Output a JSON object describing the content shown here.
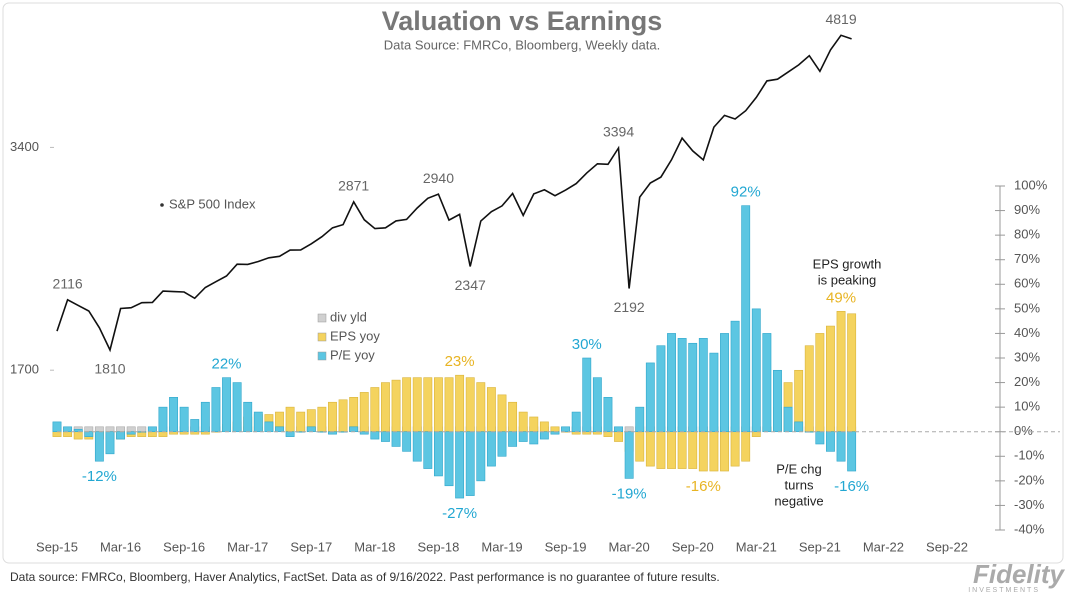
{
  "chart_data": {
    "type": "combo",
    "title": "Valuation vs Earnings",
    "subtitle": "Data Source: FMRCo, Bloomberg,  Weekly data.",
    "categories": [
      "Sep-15",
      null,
      null,
      null,
      null,
      null,
      "Mar-16",
      null,
      null,
      null,
      null,
      null,
      "Sep-16",
      null,
      null,
      null,
      null,
      null,
      "Mar-17",
      null,
      null,
      null,
      null,
      null,
      "Sep-17",
      null,
      null,
      null,
      null,
      null,
      "Mar-18",
      null,
      null,
      null,
      null,
      null,
      "Sep-18",
      null,
      null,
      null,
      null,
      null,
      "Mar-19",
      null,
      null,
      null,
      null,
      null,
      "Sep-19",
      null,
      null,
      null,
      null,
      null,
      "Mar-20",
      null,
      null,
      null,
      null,
      null,
      "Sep-20",
      null,
      null,
      null,
      null,
      null,
      "Mar-21",
      null,
      null,
      null,
      null,
      null,
      "Sep-21",
      null,
      null,
      null,
      null,
      null,
      "Mar-22",
      null,
      null,
      null,
      null,
      null,
      "Sep-22"
    ],
    "series": [
      {
        "name": "S&P 500 Index",
        "type": "line",
        "axis": "y",
        "color": "#111111",
        "values": [
          1920,
          2116,
          2080,
          2044,
          1940,
          1810,
          2060,
          2065,
          2097,
          2099,
          2174,
          2171,
          2168,
          2126,
          2199,
          2239,
          2279,
          2364,
          2363,
          2384,
          2412,
          2423,
          2470,
          2472,
          2519,
          2575,
          2648,
          2674,
          2871,
          2714,
          2641,
          2648,
          2705,
          2718,
          2816,
          2902,
          2940,
          2712,
          2760,
          2347,
          2704,
          2784,
          2834,
          2946,
          2752,
          2942,
          2980,
          2926,
          2977,
          3038,
          3141,
          3231,
          3226,
          3394,
          2192,
          2912,
          3044,
          3100,
          3271,
          3500,
          3363,
          3270,
          3622,
          3756,
          3714,
          3811,
          3973,
          4181,
          4204,
          4298,
          4395,
          4523,
          4308,
          4605,
          4819,
          4766,
          null,
          null,
          null,
          null,
          null,
          null,
          null,
          null,
          null
        ],
        "value_labels": [
          null,
          "2116",
          null,
          null,
          null,
          "1810",
          null,
          null,
          null,
          null,
          null,
          null,
          null,
          null,
          null,
          null,
          null,
          null,
          null,
          null,
          null,
          null,
          null,
          null,
          null,
          null,
          null,
          null,
          "2871",
          null,
          null,
          null,
          null,
          null,
          null,
          null,
          "2940",
          null,
          null,
          "2347",
          null,
          null,
          null,
          null,
          null,
          null,
          null,
          null,
          null,
          null,
          null,
          null,
          null,
          "3394",
          "2192",
          null,
          null,
          null,
          null,
          null,
          null,
          null,
          null,
          null,
          null,
          null,
          null,
          null,
          null,
          null,
          null,
          null,
          null,
          null,
          "4819",
          null,
          null,
          null,
          null,
          null,
          null,
          null,
          null,
          null,
          null
        ]
      },
      {
        "name": "div yld",
        "type": "bar",
        "axis": "y2",
        "color": "#d0d0d0",
        "values": [
          2,
          2,
          2,
          2,
          2,
          2,
          2,
          2,
          2,
          2,
          2,
          2,
          2,
          2,
          2,
          2,
          2,
          2,
          2,
          2,
          2,
          2,
          2,
          2,
          2,
          2,
          2,
          2,
          2,
          2,
          2,
          2,
          2,
          2,
          2,
          2,
          2,
          2,
          2,
          2,
          2,
          2,
          2,
          2,
          2,
          2,
          2,
          2,
          2,
          2,
          2,
          2,
          2,
          2,
          2,
          2,
          2,
          2,
          2,
          2,
          2,
          2,
          2,
          2,
          2,
          2,
          2,
          2,
          2,
          2,
          2,
          2,
          2,
          2,
          2,
          2,
          null,
          null,
          null,
          null,
          null,
          null,
          null,
          null,
          null
        ]
      },
      {
        "name": "EPS yoy",
        "type": "bar",
        "axis": "y2",
        "color": "#f4d35e",
        "label_color": "#e8b423",
        "values": [
          -2,
          -2,
          -3,
          -3,
          -3,
          -3,
          -3,
          -2,
          -2,
          -2,
          -2,
          -1,
          -1,
          -1,
          -1,
          0,
          3,
          4,
          6,
          7,
          7,
          8,
          10,
          8,
          9,
          10,
          12,
          13,
          14,
          16,
          18,
          20,
          21,
          22,
          22,
          22,
          22,
          22,
          23,
          22,
          20,
          18,
          15,
          12,
          8,
          6,
          4,
          2,
          0,
          -1,
          -1,
          -1,
          -2,
          -4,
          -8,
          -12,
          -14,
          -15,
          -15,
          -15,
          -15,
          -16,
          -16,
          -16,
          -14,
          -12,
          -2,
          2,
          10,
          20,
          25,
          35,
          40,
          43,
          49,
          48,
          null,
          null,
          null,
          null,
          null,
          null,
          null,
          null,
          null
        ],
        "value_labels": [
          null,
          null,
          null,
          null,
          null,
          null,
          null,
          null,
          null,
          null,
          null,
          null,
          null,
          null,
          null,
          null,
          null,
          null,
          null,
          null,
          null,
          null,
          null,
          null,
          null,
          null,
          null,
          null,
          null,
          null,
          null,
          null,
          null,
          null,
          null,
          null,
          null,
          null,
          "23%",
          null,
          null,
          null,
          null,
          null,
          null,
          null,
          null,
          null,
          null,
          null,
          null,
          null,
          null,
          null,
          null,
          null,
          null,
          null,
          null,
          null,
          null,
          "-16%",
          null,
          null,
          null,
          null,
          null,
          null,
          null,
          null,
          null,
          null,
          null,
          null,
          "49%",
          null,
          null,
          null,
          null,
          null,
          null,
          null,
          null,
          null,
          null
        ]
      },
      {
        "name": "P/E yoy",
        "type": "bar",
        "axis": "y2",
        "color": "#5cc6e2",
        "label_color": "#22a7d2",
        "values": [
          4,
          2,
          1,
          -2,
          -12,
          -9,
          -3,
          -1,
          0,
          2,
          10,
          14,
          10,
          5,
          12,
          18,
          22,
          20,
          12,
          8,
          4,
          2,
          -2,
          0,
          2,
          0,
          -1,
          0,
          2,
          -1,
          -3,
          -4,
          -6,
          -8,
          -12,
          -15,
          -18,
          -22,
          -27,
          -26,
          -20,
          -14,
          -10,
          -6,
          -4,
          -5,
          -3,
          -1,
          2,
          8,
          30,
          22,
          14,
          2,
          -19,
          10,
          28,
          35,
          40,
          38,
          36,
          38,
          32,
          40,
          45,
          92,
          50,
          40,
          25,
          10,
          4,
          0,
          -5,
          -8,
          -12,
          -16,
          null,
          null,
          null,
          null,
          null,
          null,
          null,
          null,
          null
        ],
        "value_labels": [
          null,
          null,
          null,
          null,
          "-12%",
          null,
          null,
          null,
          null,
          null,
          null,
          null,
          null,
          null,
          null,
          null,
          "22%",
          null,
          null,
          null,
          null,
          null,
          null,
          null,
          null,
          null,
          null,
          null,
          null,
          null,
          null,
          null,
          null,
          null,
          null,
          null,
          null,
          null,
          "-27%",
          null,
          null,
          null,
          null,
          null,
          null,
          null,
          null,
          null,
          null,
          null,
          "30%",
          null,
          null,
          null,
          "-19%",
          null,
          null,
          null,
          null,
          null,
          null,
          null,
          null,
          null,
          null,
          "92%",
          null,
          null,
          null,
          null,
          null,
          null,
          null,
          null,
          null,
          "-16%",
          null,
          null,
          null,
          null,
          null,
          null,
          null,
          null,
          null
        ]
      }
    ],
    "ylim": [
      1034,
      5054
    ],
    "yticks": [
      1700,
      3400
    ],
    "log": true,
    "y2lim": [
      -40,
      100
    ],
    "y2ticks": [
      {
        "value": -40,
        "label": "-40%"
      },
      {
        "value": -30,
        "label": "-30%"
      },
      {
        "value": -20,
        "label": "-20%"
      },
      {
        "value": -10,
        "label": "-10%"
      },
      {
        "value": 0,
        "label": "0%"
      },
      {
        "value": 10,
        "label": "10%"
      },
      {
        "value": 20,
        "label": "20%"
      },
      {
        "value": 30,
        "label": "30%"
      },
      {
        "value": 40,
        "label": "40%"
      },
      {
        "value": 50,
        "label": "50%"
      },
      {
        "value": 60,
        "label": "60%"
      },
      {
        "value": 70,
        "label": "70%"
      },
      {
        "value": 80,
        "label": "80%"
      },
      {
        "value": 90,
        "label": "90%"
      },
      {
        "value": 100,
        "label": "100%"
      }
    ],
    "annotations": [
      [
        "EPS growth",
        "is peaking"
      ],
      [
        "P/E chg",
        "turns",
        "negative"
      ]
    ]
  },
  "footer": "Data source: FMRCo, Bloomberg, Haver Analytics, FactSet. Data as of 9/16/2022. Past performance is no guarantee of future results.",
  "logo": "Fidelity",
  "logo_sub": "INVESTMENTS"
}
